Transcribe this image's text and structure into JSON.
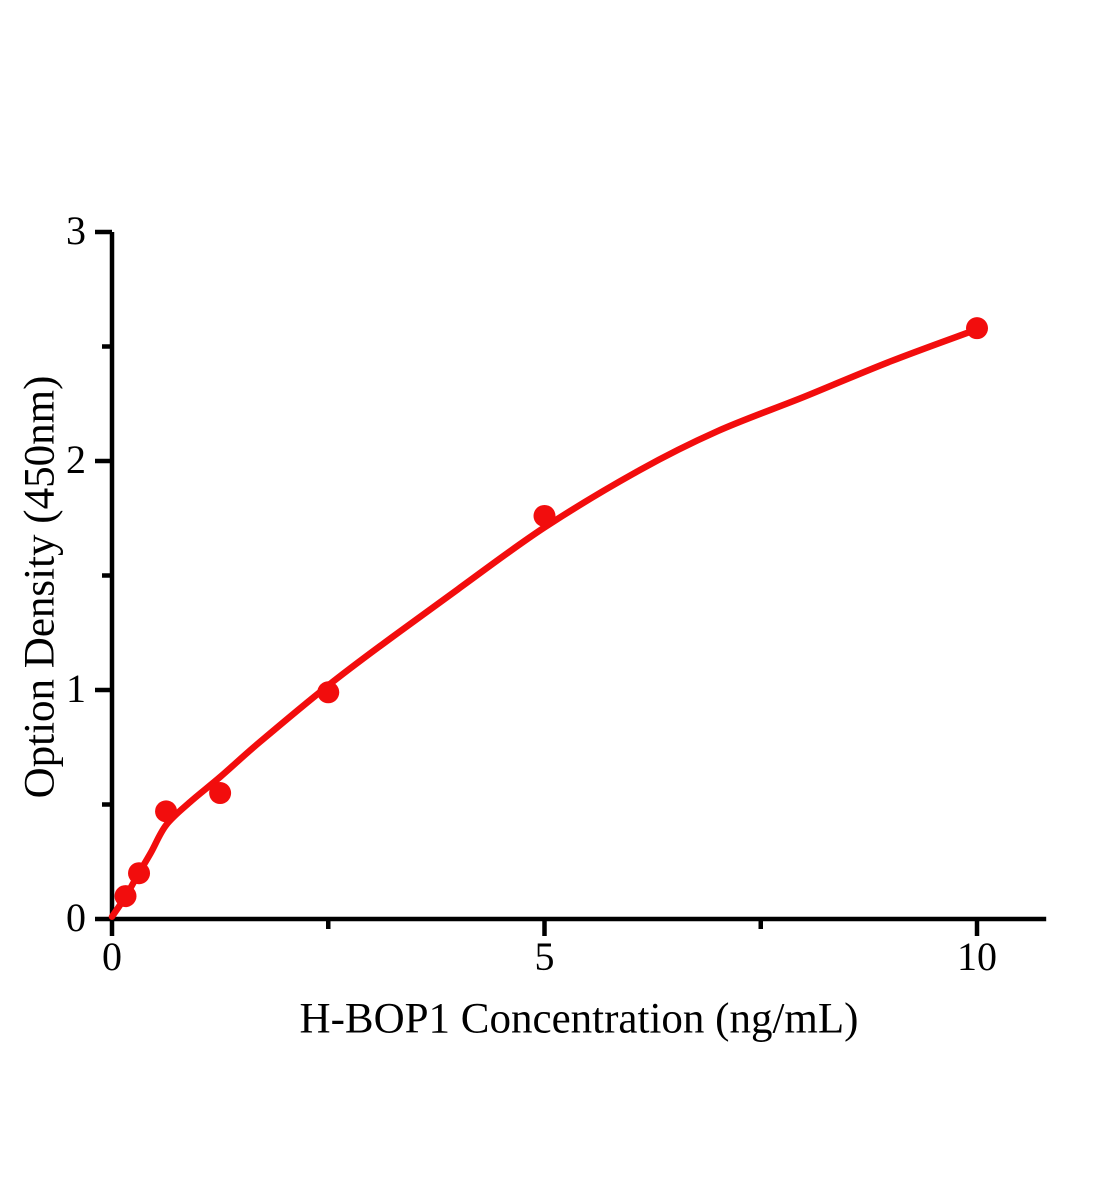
{
  "figure": {
    "background": "#ffffff"
  },
  "chart_data": {
    "type": "scatter",
    "title": "",
    "xlabel": "H-BOP1 Concentration (ng/mL)",
    "ylabel": "Option Density (450nm)",
    "xlim": [
      0,
      10.8
    ],
    "ylim": [
      0,
      3
    ],
    "x_major_ticks": [
      0,
      5,
      10
    ],
    "x_minor_ticks": [
      2.5,
      7.5
    ],
    "y_major_ticks": [
      0,
      1,
      2,
      3
    ],
    "y_minor_ticks": [
      0.5,
      1.5,
      2.5
    ],
    "grid": false,
    "legend": false,
    "axis_color": "#000000",
    "marker_color": "#f20d0d",
    "curve_color": "#f20d0d",
    "points": [
      [
        0.156,
        0.1
      ],
      [
        0.3125,
        0.2
      ],
      [
        0.625,
        0.47
      ],
      [
        1.25,
        0.55
      ],
      [
        2.5,
        0.99
      ],
      [
        5,
        1.76
      ],
      [
        10,
        2.58
      ]
    ],
    "fit_curve_points": [
      [
        0,
        0.01
      ],
      [
        0.16,
        0.1
      ],
      [
        0.31,
        0.2
      ],
      [
        0.45,
        0.29
      ],
      [
        0.625,
        0.41
      ],
      [
        0.9,
        0.51
      ],
      [
        1.25,
        0.62
      ],
      [
        1.7,
        0.77
      ],
      [
        2.5,
        1.02
      ],
      [
        3.2,
        1.22
      ],
      [
        4.0,
        1.44
      ],
      [
        5.0,
        1.71
      ],
      [
        6.1,
        1.96
      ],
      [
        7.0,
        2.13
      ],
      [
        8.0,
        2.28
      ],
      [
        9.0,
        2.435
      ],
      [
        10,
        2.575
      ]
    ]
  }
}
